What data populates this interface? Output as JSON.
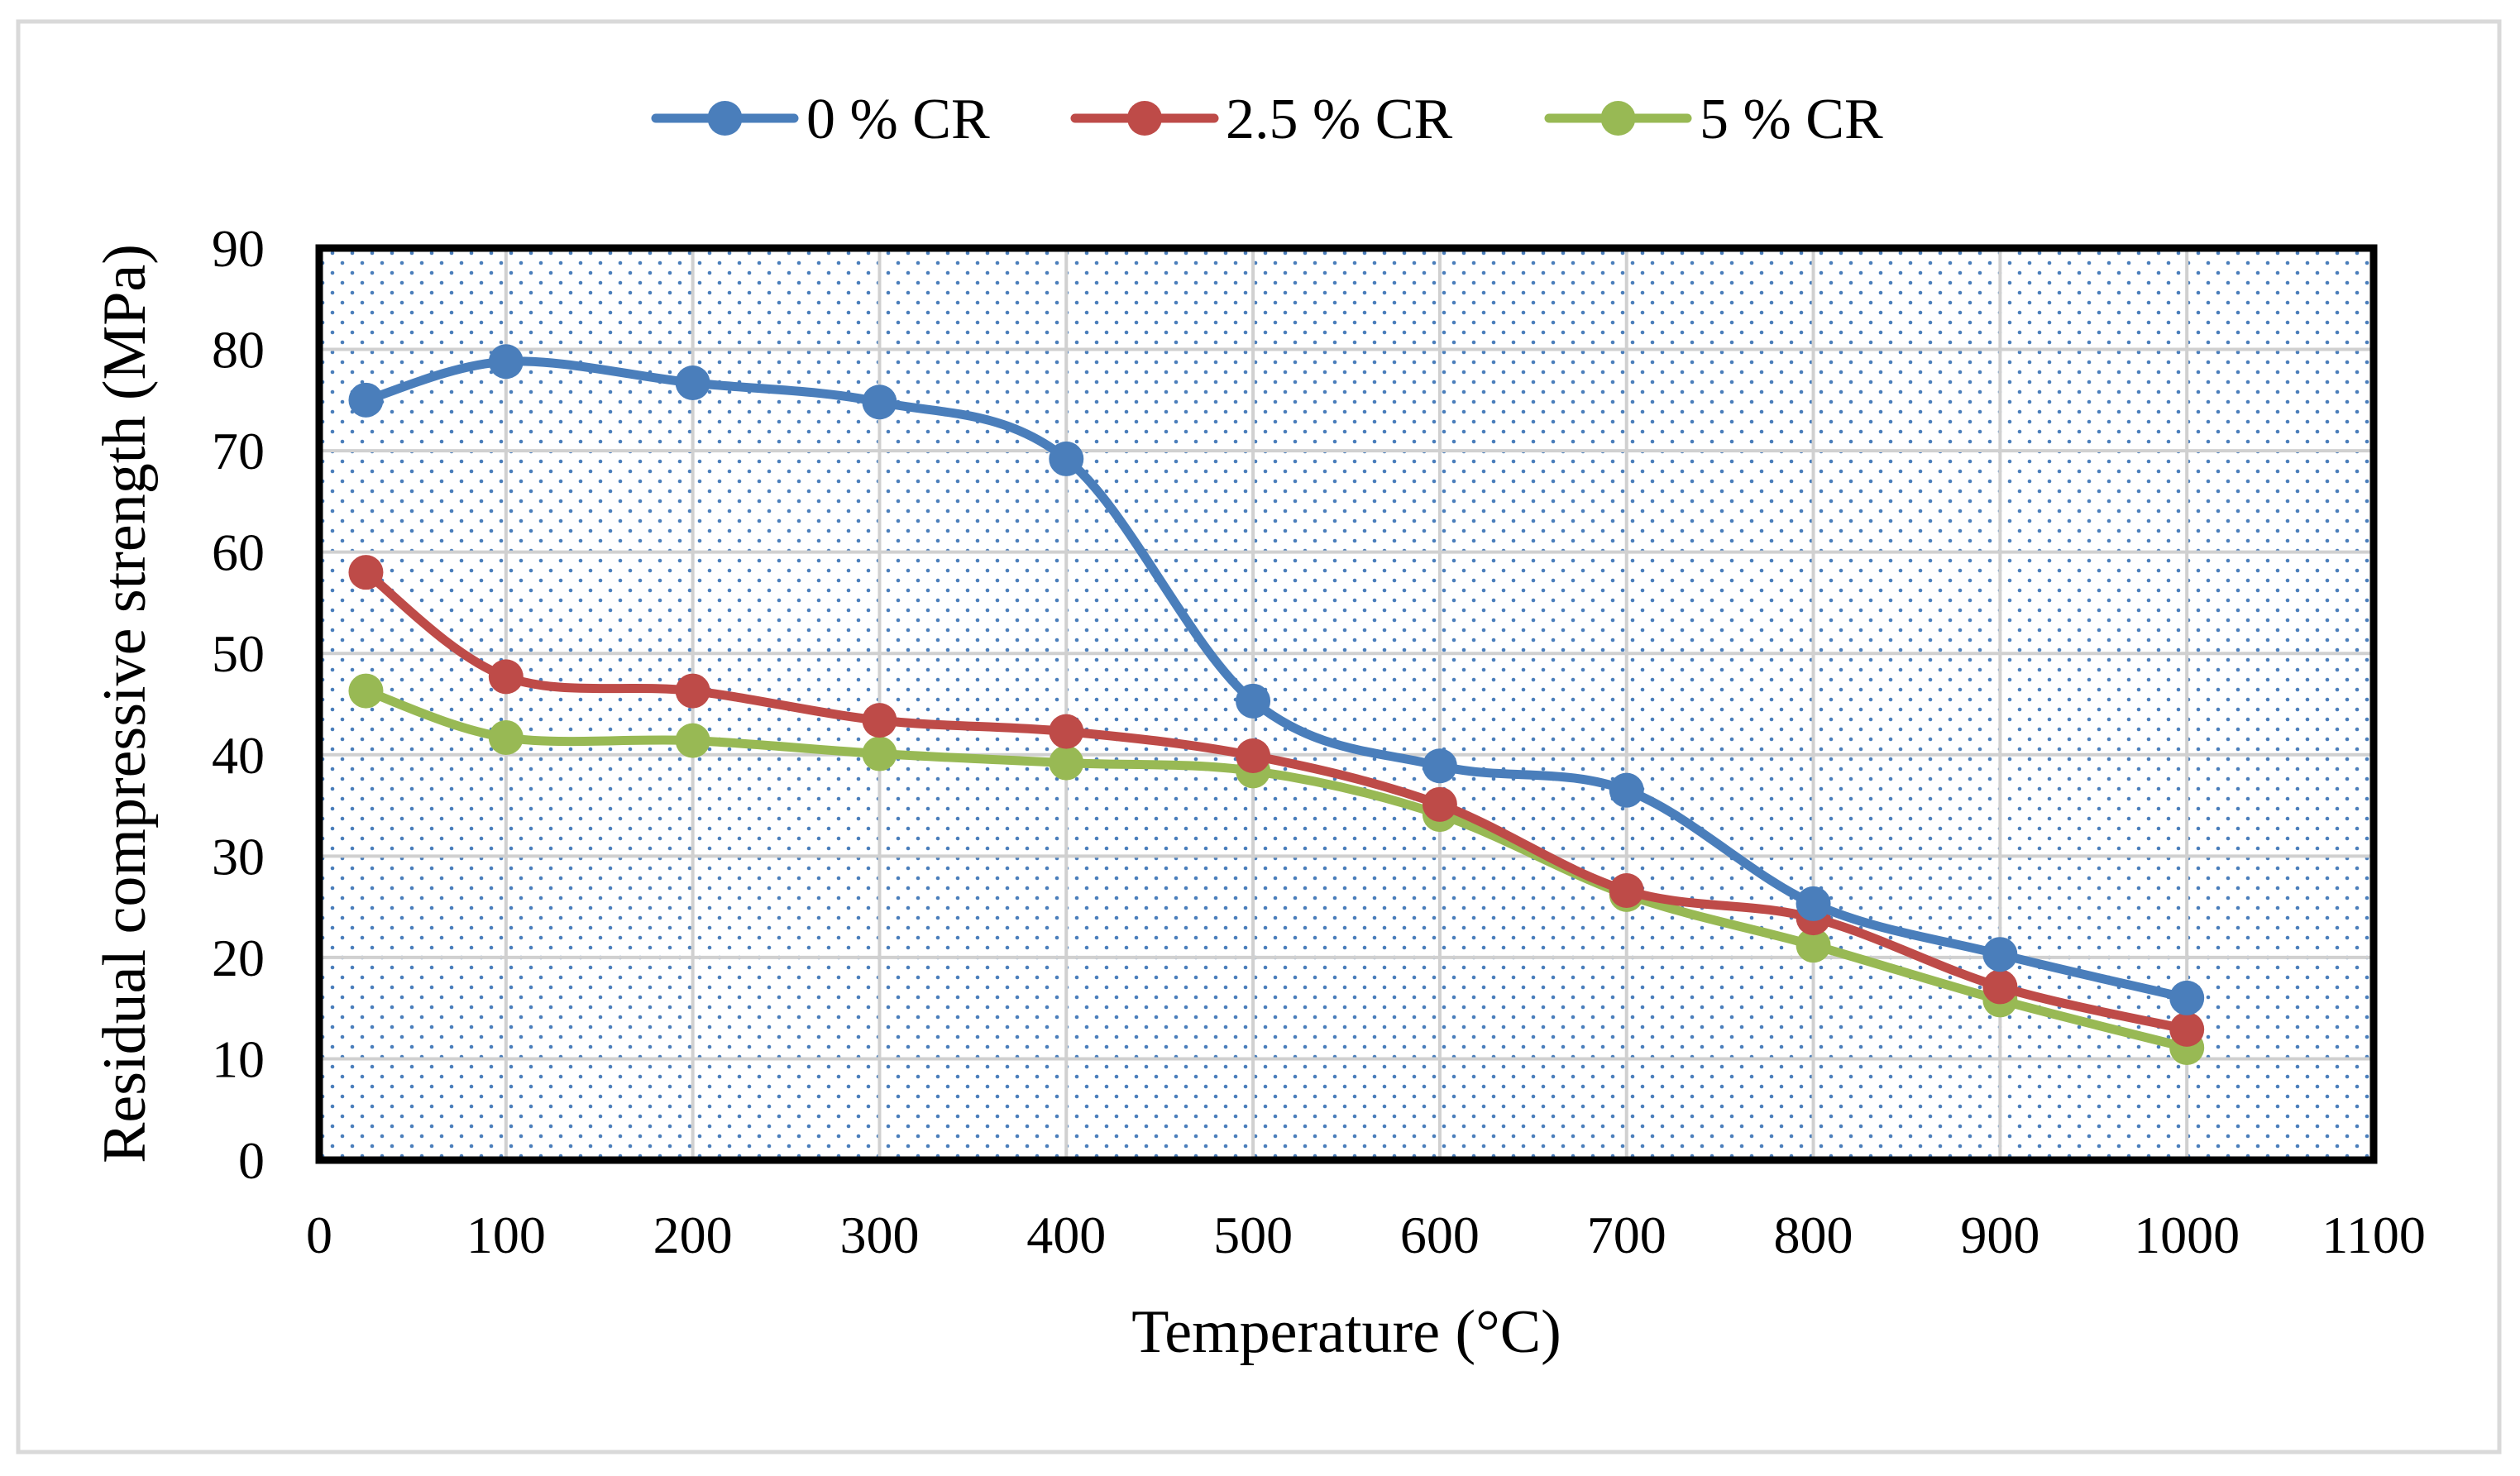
{
  "chart_data": {
    "type": "line",
    "title": "",
    "xlabel": "Temperature (°C)",
    "ylabel": "Residual compressive strength (MPa)",
    "xlim": [
      0,
      1100
    ],
    "ylim": [
      0,
      90
    ],
    "xticks": [
      0,
      100,
      200,
      300,
      400,
      500,
      600,
      700,
      800,
      900,
      1000,
      1100
    ],
    "yticks": [
      0,
      10,
      20,
      30,
      40,
      50,
      60,
      70,
      80,
      90
    ],
    "x_tick_labels": [
      "0",
      "100",
      "200",
      "300",
      "400",
      "500",
      "600",
      "700",
      "800",
      "900",
      "1000",
      "1100"
    ],
    "y_tick_labels": [
      "0",
      "10",
      "20",
      "30",
      "40",
      "50",
      "60",
      "70",
      "80",
      "90"
    ],
    "grid": true,
    "legend_position": "top-center",
    "x": [
      25,
      100,
      200,
      300,
      400,
      500,
      600,
      700,
      800,
      900,
      1000
    ],
    "series": [
      {
        "name": "0 % CR",
        "color": "#4a7ebb",
        "values": [
          75.0,
          78.8,
          76.7,
          74.8,
          69.2,
          45.3,
          38.9,
          36.5,
          25.3,
          20.3,
          16.0
        ]
      },
      {
        "name": "2.5 % CR",
        "color": "#be4b48",
        "values": [
          58.0,
          47.7,
          46.3,
          43.4,
          42.3,
          39.9,
          35.1,
          26.6,
          23.9,
          17.1,
          12.9
        ]
      },
      {
        "name": "5 % CR",
        "color": "#98b954",
        "values": [
          46.3,
          41.7,
          41.4,
          40.1,
          39.2,
          38.4,
          34.1,
          26.2,
          21.2,
          15.8,
          11.1
        ]
      }
    ],
    "colors": {
      "plot_background": "#ffffff",
      "dot_pattern": "#4a7ebb",
      "gridline": "#d0d0d0",
      "plot_border": "#000000",
      "frame_border": "#d9d9d9"
    }
  }
}
